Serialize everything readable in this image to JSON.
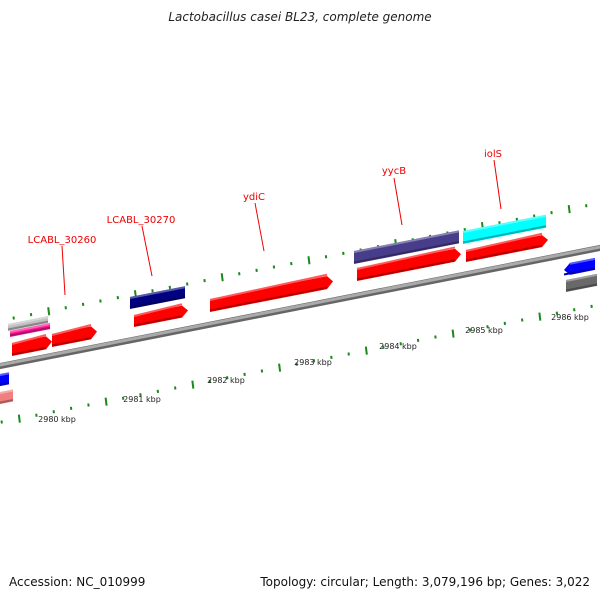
{
  "title": "Lactobacillus casei BL23, complete genome",
  "footer": {
    "accession": "Accession: NC_010999",
    "topology": "Topology: circular; Length: 3,079,196 bp; Genes: 3,022"
  },
  "gene_labels": [
    "LCABL_30260",
    "LCABL_30270",
    "ydiC",
    "yycB",
    "iolS"
  ],
  "scale_labels": [
    "2980 kbp",
    "2981 kbp",
    "2982 kbp",
    "2983 kbp",
    "2984 kbp",
    "2985 kbp",
    "2986 kbp"
  ],
  "colors": {
    "cds": "#ff0000",
    "backbone": "#888888",
    "ticks": "#1a8a1a",
    "label": "#ff0000",
    "navy": "#000080",
    "slate": "#483d8b",
    "cyan": "#00ffff",
    "pink": "#ff1493",
    "gray": "#c0c0c0",
    "blue": "#0000ff",
    "darkgray": "#696969",
    "salmon": "#f08080"
  }
}
